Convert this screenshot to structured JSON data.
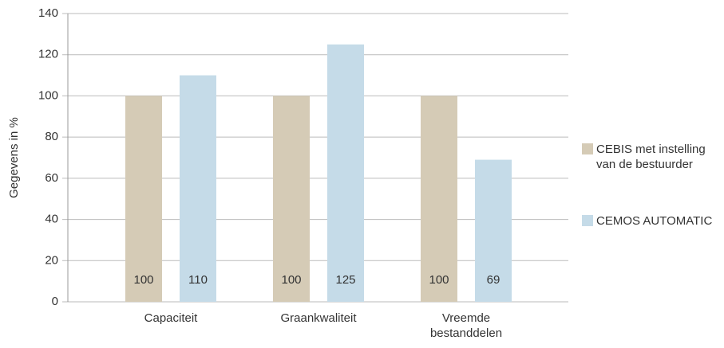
{
  "chart_data": {
    "type": "bar",
    "categories": [
      "Capaciteit",
      "Graankwaliteit",
      "Vreemde bestanddelen"
    ],
    "series": [
      {
        "name": "CEBIS met instelling van de bestuurder",
        "color": "#d5cbb6",
        "values": [
          100,
          100,
          100
        ]
      },
      {
        "name": "CEMOS AUTOMATIC",
        "color": "#c5dbe8",
        "values": [
          110,
          125,
          69
        ]
      }
    ],
    "y_label": "Gegevens in %",
    "ylim": [
      0,
      140
    ],
    "yticks": [
      0,
      20,
      40,
      60,
      80,
      100,
      120,
      140
    ],
    "grid": true,
    "legend": "right"
  }
}
